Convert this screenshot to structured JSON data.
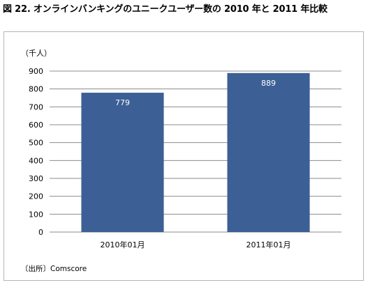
{
  "title": "図 22. オンラインバンキングのユニークユーザー数の 2010 年と 2011 年比較",
  "chart_data": {
    "type": "bar",
    "title": "図 22. オンラインバンキングのユニークユーザー数の 2010 年と 2011 年比較",
    "unit_label": "（千人）",
    "categories": [
      "2010年01月",
      "2011年01月"
    ],
    "values": [
      779,
      889
    ],
    "data_labels": [
      "779",
      "889"
    ],
    "ylim": [
      0,
      900
    ],
    "yticks": [
      0,
      100,
      200,
      300,
      400,
      500,
      600,
      700,
      800,
      900
    ],
    "ytick_labels": [
      "0",
      "100",
      "200",
      "300",
      "400",
      "500",
      "600",
      "700",
      "800",
      "900"
    ],
    "xlabel": "",
    "ylabel": "",
    "grid": true,
    "legend": "none",
    "bar_color": "#3c5f96",
    "data_label_color": "#ffffff",
    "gridline_color": "#8c8c8c",
    "source": "〔出所〕Comscore"
  }
}
